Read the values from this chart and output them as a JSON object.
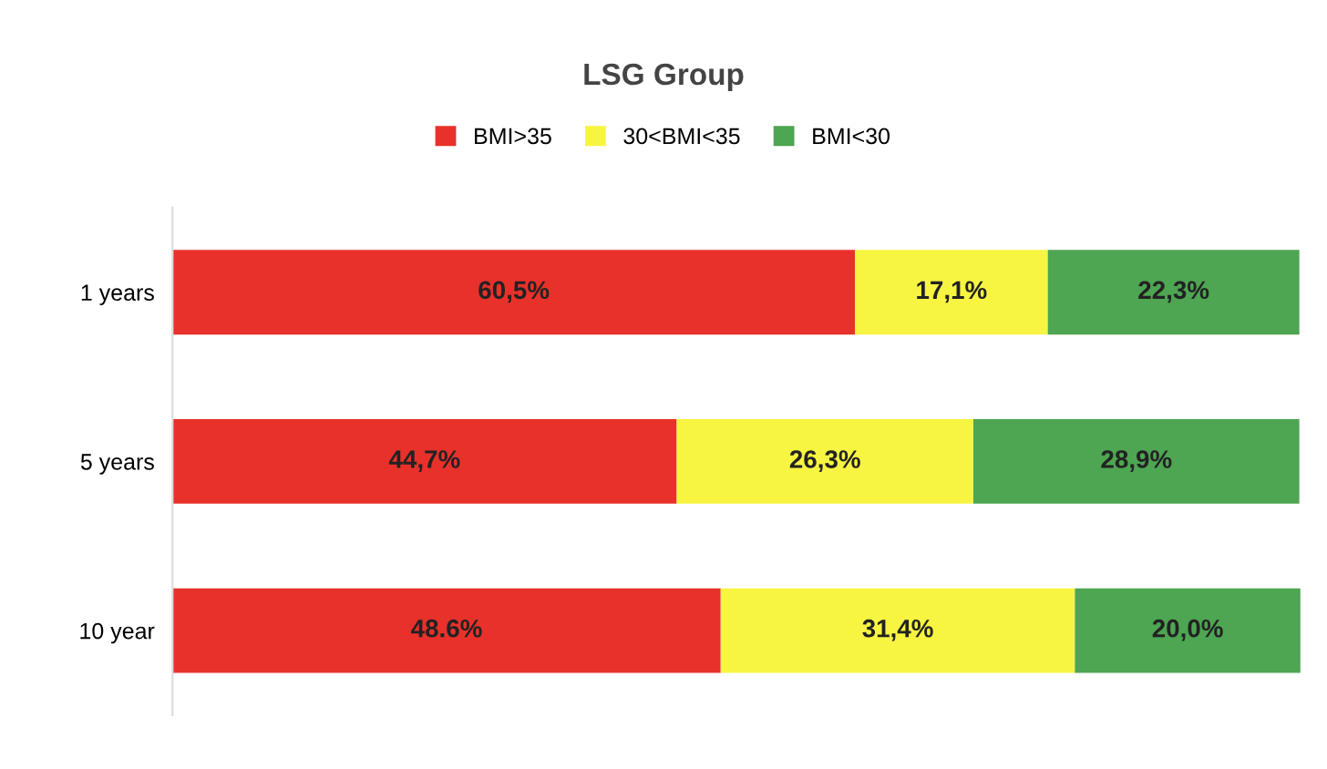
{
  "chart_data": {
    "type": "bar",
    "title": "LSG Group",
    "orientation": "horizontal",
    "stacked": true,
    "categories": [
      "1 years",
      "5 years",
      "10 year"
    ],
    "series": [
      {
        "name": "BMI>35",
        "color": "#e8312a",
        "values": [
          60.5,
          44.7,
          48.6
        ],
        "value_labels": [
          "60,5%",
          "44,7%",
          "48.6%"
        ]
      },
      {
        "name": "30<BMI<35",
        "color": "#f7f542",
        "values": [
          17.1,
          26.3,
          31.4
        ],
        "value_labels": [
          "17,1%",
          "26,3%",
          "31,4%"
        ]
      },
      {
        "name": "BMI<30",
        "color": "#4ea552",
        "values": [
          22.3,
          28.9,
          20.0
        ],
        "value_labels": [
          "22,3%",
          "28,9%",
          "20,0%"
        ]
      }
    ],
    "xlim": [
      0,
      100
    ],
    "tick_labels": "y",
    "legend": "top",
    "grid": false
  }
}
